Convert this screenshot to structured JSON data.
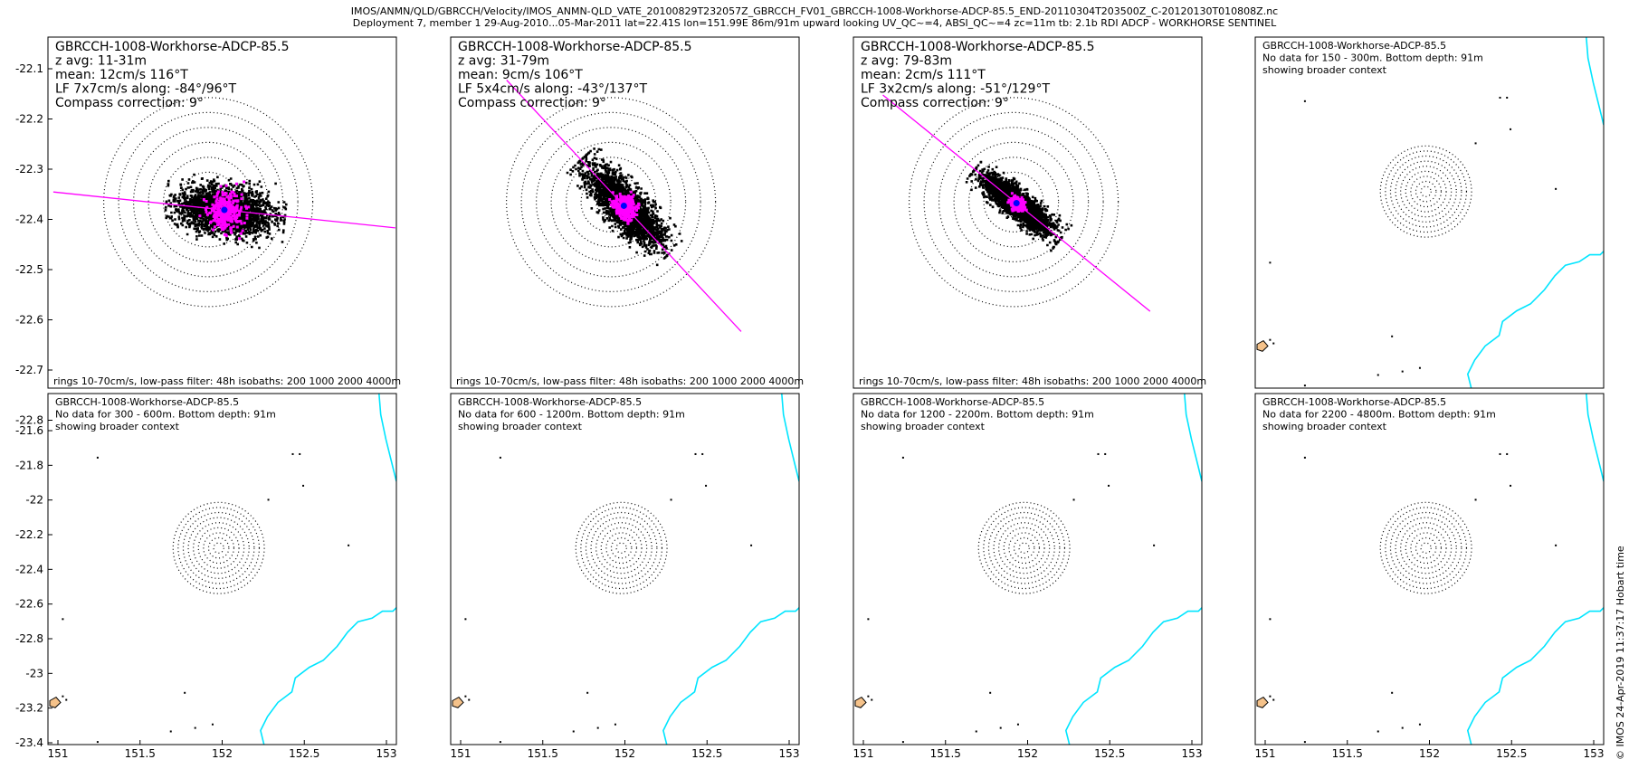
{
  "header": {
    "line1": "IMOS/ANMN/QLD/GBRCCH/Velocity/IMOS_ANMN-QLD_VATE_20100829T232057Z_GBRCCH_FV01_GBRCCH-1008-Workhorse-ADCP-85.5_END-20110304T203500Z_C-20120130T010808Z.nc",
    "line2": "Deployment 7, member 1 29-Aug-2010...05-Mar-2011 lat=22.41S lon=151.99E 86m/91m upward looking UV_QC~=4, ABSI_QC~=4 zc=11m tb: 2.1b RDI ADCP - WORKHORSE SENTINEL"
  },
  "credit": "© IMOS 24-Apr-2019 11:37:17 Hobart time",
  "chart_data": [
    {
      "type": "scatter",
      "label": [
        "GBRCCH-1008-Workhorse-ADCP-85.5",
        "z avg: 11-31m",
        "mean: 12cm/s 116°T",
        "LF 7x7cm/s along: -84°/96°T",
        "Compass correction: 9°"
      ],
      "footer": "rings 10-70cm/s, low-pass filter: 48h isobaths: 200 1000 2000 4000m",
      "mean_dir": 116,
      "mean_speed": 12,
      "along_dir": 96,
      "spread": [
        7,
        7
      ],
      "bigspread": [
        26,
        13
      ],
      "yticks": [
        "-22.1",
        "-22.2",
        "-22.3",
        "-22.4",
        "-22.5",
        "-22.6",
        "-22.7",
        "-22.8"
      ],
      "xticks": []
    },
    {
      "type": "scatter",
      "label": [
        "GBRCCH-1008-Workhorse-ADCP-85.5",
        "z avg: 31-79m",
        "mean: 9cm/s 106°T",
        "LF 5x4cm/s along: -43°/137°T",
        "Compass correction: 9°"
      ],
      "footer": "rings 10-70cm/s, low-pass filter: 48h isobaths: 200 1000 2000 4000m",
      "mean_dir": 106,
      "mean_speed": 9,
      "along_dir": 137,
      "spread": [
        5,
        4
      ],
      "bigspread": [
        28,
        10
      ],
      "yticks": [],
      "xticks": []
    },
    {
      "type": "scatter",
      "label": [
        "GBRCCH-1008-Workhorse-ADCP-85.5",
        "z avg: 79-83m",
        "mean: 2cm/s 111°T",
        "LF 3x2cm/s along: -51°/129°T",
        "Compass correction: 9°"
      ],
      "footer": "rings 10-70cm/s, low-pass filter: 48h isobaths: 200 1000 2000 4000m",
      "mean_dir": 111,
      "mean_speed": 2,
      "along_dir": 129,
      "spread": [
        3,
        2
      ],
      "bigspread": [
        24,
        7
      ],
      "yticks": [],
      "xticks": []
    },
    {
      "type": "map",
      "label": [
        "GBRCCH-1008-Workhorse-ADCP-85.5",
        "No data for 150 - 300m. Bottom depth: 91m",
        "showing broader context"
      ],
      "yticks": [],
      "xticks": []
    },
    {
      "type": "map",
      "label": [
        "GBRCCH-1008-Workhorse-ADCP-85.5",
        "No data for 300 - 600m. Bottom depth: 91m",
        "showing broader context"
      ],
      "yticks": [
        "-21.6",
        "-21.8",
        "-22",
        "-22.2",
        "-22.4",
        "-22.6",
        "-22.8",
        "-23",
        "-23.2",
        "-23.4"
      ],
      "xticks": [
        "151",
        "151.5",
        "152",
        "152.5",
        "153"
      ]
    },
    {
      "type": "map",
      "label": [
        "GBRCCH-1008-Workhorse-ADCP-85.5",
        "No data for 600 - 1200m. Bottom depth: 91m",
        "showing broader context"
      ],
      "yticks": [],
      "xticks": [
        "151",
        "151.5",
        "152",
        "152.5",
        "153"
      ]
    },
    {
      "type": "map",
      "label": [
        "GBRCCH-1008-Workhorse-ADCP-85.5",
        "No data for 1200 - 2200m. Bottom depth: 91m",
        "showing broader context"
      ],
      "yticks": [],
      "xticks": [
        "151",
        "151.5",
        "152",
        "152.5",
        "153"
      ]
    },
    {
      "type": "map",
      "label": [
        "GBRCCH-1008-Workhorse-ADCP-85.5",
        "No data for 2200 - 4800m. Bottom depth: 91m",
        "showing broader context"
      ],
      "yticks": [],
      "xticks": [
        "151",
        "151.5",
        "152",
        "152.5",
        "153"
      ]
    }
  ]
}
